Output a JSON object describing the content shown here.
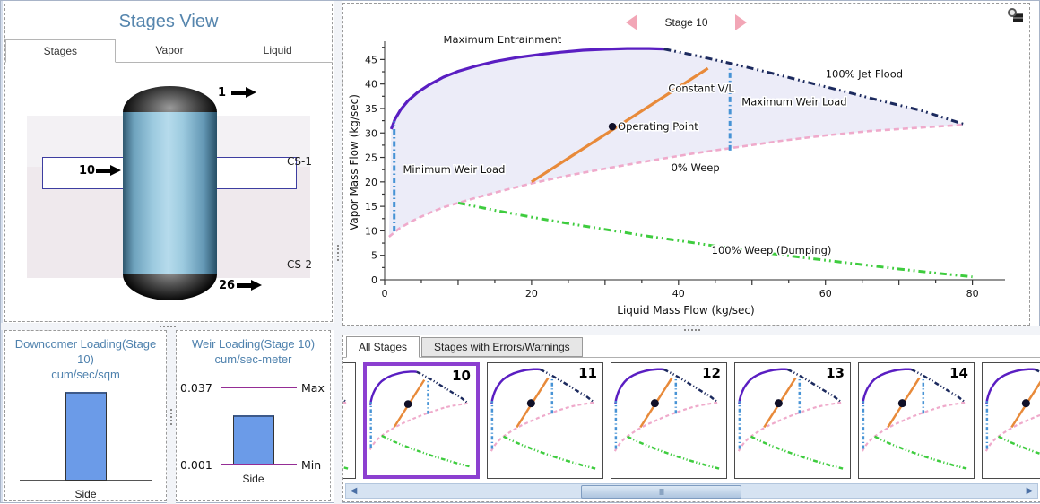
{
  "colors": {
    "title_blue": "#5585ad",
    "selection_purple": "#8c3fd0",
    "bar_blue": "#6b9be8",
    "limit_magenta": "#952d95",
    "nav_pink": "#f2a6b6",
    "envelope_fill": "#ececf8"
  },
  "icons": {
    "nav_prev": "pink-left-triangle",
    "nav_next": "pink-right-triangle",
    "corner": "magnifier-over-pages",
    "stream": "black-right-arrow"
  },
  "stages_view": {
    "title": "Stages View",
    "tabs": [
      "Stages",
      "Vapor",
      "Liquid"
    ],
    "active_tab": "Stages",
    "column": {
      "top_stage": "1",
      "selected_stage": "10",
      "bottom_stage": "26",
      "sections": [
        "CS-1",
        "CS-2"
      ]
    }
  },
  "chart_data": [
    {
      "type": "line",
      "title": "Stage 10",
      "xlabel": "Liquid Mass Flow (kg/sec)",
      "ylabel": "Vapor Mass Flow (kg/sec)",
      "xlim": [
        0,
        82
      ],
      "ylim": [
        0,
        48
      ],
      "xtick_labels": [
        0,
        20,
        40,
        60,
        80
      ],
      "xtick_minor_step": 5,
      "ytick_labels": [
        0,
        5,
        10,
        15,
        20,
        25,
        30,
        35,
        40,
        45
      ],
      "ytick_minor_step": 2.5,
      "grid": false,
      "legend": "none (inline annotations)",
      "fill_color": "#ececf8",
      "fill_between": {
        "top": [
          "Maximum Entrainment",
          "100% Jet Flood"
        ],
        "bottom": "0% Weep"
      },
      "series": [
        {
          "name": "Maximum Entrainment",
          "color": "#5a1ec2",
          "style": "solid",
          "width": 3.2,
          "points": [
            [
              0.9,
              30.8
            ],
            [
              1.4,
              32.8
            ],
            [
              2.2,
              34.8
            ],
            [
              3.2,
              36.6
            ],
            [
              4.5,
              38.3
            ],
            [
              6,
              39.8
            ],
            [
              8,
              41.4
            ],
            [
              10,
              42.6
            ],
            [
              12.5,
              43.7
            ],
            [
              15,
              44.6
            ],
            [
              18,
              45.4
            ],
            [
              21,
              46.0
            ],
            [
              24,
              46.5
            ],
            [
              27,
              46.9
            ],
            [
              30,
              47.1
            ],
            [
              33,
              47.25
            ],
            [
              36,
              47.25
            ],
            [
              38,
              47.15
            ]
          ]
        },
        {
          "name": "100% Jet Flood",
          "color": "#1c2a5e",
          "style": "dashdotdot",
          "width": 3,
          "points": [
            [
              38,
              47.15
            ],
            [
              43,
              45.6
            ],
            [
              48,
              43.9
            ],
            [
              53,
              42.1
            ],
            [
              58,
              40.2
            ],
            [
              63,
              38.3
            ],
            [
              68,
              36.4
            ],
            [
              73,
              34.6
            ],
            [
              79,
              31.7
            ]
          ]
        },
        {
          "name": "0% Weep",
          "color": "#efaacb",
          "style": "dash",
          "width": 2.6,
          "points": [
            [
              0.6,
              8.8
            ],
            [
              2,
              10.5
            ],
            [
              4,
              12.2
            ],
            [
              6,
              13.6
            ],
            [
              8,
              14.8
            ],
            [
              10,
              15.7
            ],
            [
              13,
              17.0
            ],
            [
              16,
              18.2
            ],
            [
              20,
              19.7
            ],
            [
              25,
              21.3
            ],
            [
              30,
              22.7
            ],
            [
              36,
              24.3
            ],
            [
              42,
              25.8
            ],
            [
              48,
              27.1
            ],
            [
              54,
              28.4
            ],
            [
              60,
              29.5
            ],
            [
              66,
              30.4
            ],
            [
              72,
              31.0
            ],
            [
              79,
              31.7
            ]
          ]
        },
        {
          "name": "100% Weep (Dumping)",
          "color": "#3ecc3e",
          "style": "dashdotdot",
          "width": 3,
          "points": [
            [
              10,
              15.7
            ],
            [
              15,
              14.2
            ],
            [
              20,
              12.8
            ],
            [
              25,
              11.5
            ],
            [
              30,
              10.3
            ],
            [
              35,
              9.1
            ],
            [
              40,
              8.0
            ],
            [
              45,
              6.9
            ],
            [
              50,
              5.9
            ],
            [
              55,
              4.9
            ],
            [
              60,
              4.0
            ],
            [
              65,
              3.1
            ],
            [
              70,
              2.2
            ],
            [
              75,
              1.4
            ],
            [
              80,
              0.6
            ]
          ]
        },
        {
          "name": "Constant V/L",
          "color": "#e88a3a",
          "style": "solid",
          "width": 3.2,
          "points": [
            [
              20,
              20
            ],
            [
              44,
              43.2
            ]
          ]
        },
        {
          "name": "Minimum Weir Load",
          "color": "#4793d5",
          "style": "dashdot",
          "width": 3,
          "points": [
            [
              1.3,
              9.9
            ],
            [
              1.3,
              32.4
            ]
          ]
        },
        {
          "name": "Maximum Weir Load",
          "color": "#4793d5",
          "style": "dashdot",
          "width": 3,
          "points": [
            [
              47,
              26.4
            ],
            [
              47,
              43.6
            ]
          ]
        }
      ],
      "operating_point": {
        "x": 31,
        "y": 31.3,
        "label": "Operating Point",
        "color": "#101028"
      },
      "annotations": [
        {
          "text": "Maximum Entrainment",
          "x": 8,
          "y": 48.4,
          "anchor": "start"
        },
        {
          "text": "100% Jet Flood",
          "x": 60,
          "y": 41.3,
          "anchor": "start"
        },
        {
          "text": "Maximum Weir Load",
          "x": 48.6,
          "y": 35.6,
          "anchor": "start"
        },
        {
          "text": "Constant V/L",
          "x": 38.6,
          "y": 38.4,
          "anchor": "start"
        },
        {
          "text": "Minimum Weir Load",
          "x": 2.5,
          "y": 21.8,
          "anchor": "start"
        },
        {
          "text": "0% Weep",
          "x": 39,
          "y": 22.2,
          "anchor": "start"
        },
        {
          "text": "100% Weep (Dumping)",
          "x": 44.5,
          "y": 5.3,
          "anchor": "start"
        }
      ]
    },
    {
      "type": "bar",
      "title": "Downcomer Loading(Stage 10)",
      "units": "cum/sec/sqm",
      "categories": [
        "Side"
      ],
      "values": [
        null
      ],
      "bar_relative_height": 0.62,
      "bar_color": "#6b9be8"
    },
    {
      "type": "bar",
      "title": "Weir Loading(Stage 10)",
      "units": "cum/sec-meter",
      "categories": [
        "Side"
      ],
      "values": [
        0.024
      ],
      "limits": {
        "max": {
          "value": 0.037,
          "label": "Max"
        },
        "min": {
          "value": 0.001,
          "label": "Min"
        }
      },
      "bar_color": "#6b9be8",
      "limit_color": "#952d95"
    }
  ],
  "bottom_panel": {
    "tabs": [
      "All Stages",
      "Stages with Errors/Warnings"
    ],
    "active_tab": "All Stages",
    "thumbnails": [
      {
        "stage": "",
        "partial": "left",
        "selected": false
      },
      {
        "stage": "10",
        "selected": true
      },
      {
        "stage": "11",
        "selected": false
      },
      {
        "stage": "12",
        "selected": false
      },
      {
        "stage": "13",
        "selected": false
      },
      {
        "stage": "14",
        "selected": false
      },
      {
        "stage": "",
        "partial": "right",
        "selected": false
      }
    ]
  }
}
